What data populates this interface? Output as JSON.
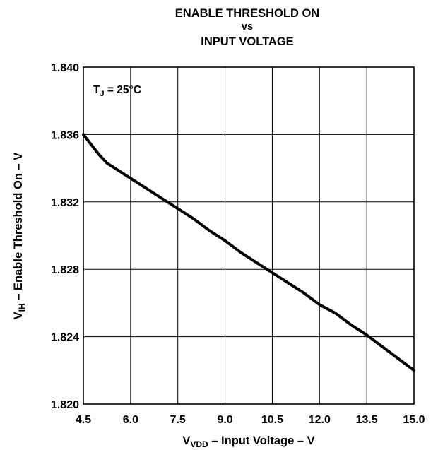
{
  "chart_data": {
    "type": "line",
    "title": [
      "ENABLE THRESHOLD ON",
      "vs",
      "INPUT VOLTAGE"
    ],
    "xlabel": {
      "main": "V",
      "sub": "VDD",
      "rest": " –  Input Voltage – V"
    },
    "ylabel": {
      "main": "V",
      "sub": "IH",
      "rest": " – Enable Threshold On – V"
    },
    "annotation": {
      "main": "T",
      "sub": "J",
      "rest": " = 25°C"
    },
    "xlim": [
      4.5,
      15.0
    ],
    "ylim": [
      1.82,
      1.84
    ],
    "xticks": [
      4.5,
      6.0,
      7.5,
      9.0,
      10.5,
      12.0,
      13.5,
      15.0
    ],
    "xtick_labels": [
      "4.5",
      "6.0",
      "7.5",
      "9.0",
      "10.5",
      "12.0",
      "13.5",
      "15.0"
    ],
    "yticks": [
      1.82,
      1.824,
      1.828,
      1.832,
      1.836,
      1.84
    ],
    "ytick_labels": [
      "1.820",
      "1.824",
      "1.828",
      "1.832",
      "1.836",
      "1.840"
    ],
    "grid": true,
    "line_color": "#000000",
    "series": [
      {
        "x": [
          4.5,
          4.75,
          5.0,
          5.25,
          5.5,
          6.0,
          6.5,
          7.0,
          7.5,
          8.0,
          8.5,
          9.0,
          9.5,
          10.0,
          10.5,
          11.0,
          11.5,
          12.0,
          12.5,
          13.0,
          13.5,
          14.0,
          14.5,
          15.0
        ],
        "y": [
          1.836,
          1.8354,
          1.8348,
          1.8343,
          1.834,
          1.8334,
          1.8328,
          1.8322,
          1.8316,
          1.831,
          1.8303,
          1.8297,
          1.829,
          1.8284,
          1.8278,
          1.8272,
          1.8266,
          1.8259,
          1.8254,
          1.8247,
          1.8241,
          1.8234,
          1.8227,
          1.822
        ]
      }
    ]
  }
}
